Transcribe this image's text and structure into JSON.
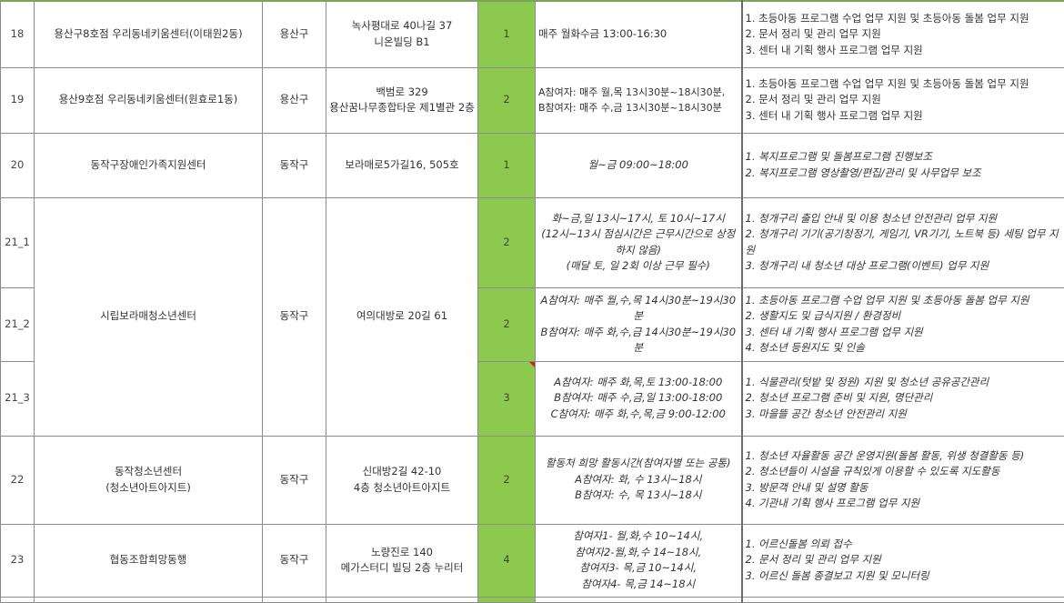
{
  "colors": {
    "count_fill": "#8dc84f",
    "comment_marker": "#d02020"
  },
  "rows": [
    {
      "no": "18",
      "name": "용산구8호점 우리동네키움센터(이태원2동)",
      "district": "용산구",
      "address": "녹사평대로 40나길 37\n니온빌딩 B1",
      "count": "1",
      "schedule": "매주 월화수금 13:00-16:30",
      "duties": "1. 초등아동 프로그램 수업 업무 지원 및 초등아동 돌봄 업무 지원\n2. 문서 정리 및 관리 업무 지원\n3. 센터 내 기획 행사 프로그램 업무 지원"
    },
    {
      "no": "19",
      "name": "용산9호점 우리동네키움센터(원효로1동)",
      "district": "용산구",
      "address": "백범로 329\n용산꿈나무종합타운 제1별관 2층",
      "count": "2",
      "schedule": "A참여자: 매주 월,목 13시30분~18시30분,\nB참여자: 매주 수,금  13시30분~18시30분",
      "duties": "1. 초등아동 프로그램 수업 업무 지원 및 초등아동 돌봄 업무 지원\n2. 문서 정리 및 관리 업무 지원\n3. 센터 내 기획 행사 프로그램 업무 지원"
    },
    {
      "no": "20",
      "name": "동작구장애인가족지원센터",
      "district": "동작구",
      "address": "보라매로5가길16, 505호",
      "count": "1",
      "schedule": "월~금 09:00~18:00",
      "duties": "1. 복지프로그램 및 돌봄프로그램 진행보조\n2. 복지프로그램 영상촬영/편집/관리 및 사무업무 보조"
    },
    {
      "no": "21_1",
      "name": "시립보라매청소년센터",
      "district": "동작구",
      "address": "여의대방로 20길 61",
      "count": "2",
      "schedule": "화~금,일 13시~17시, 토 10시~17시\n(12시~13시 점심시간은 근무시간으로 상정하지 않음)\n(매달 토, 일 2회 이상 근무 필수)",
      "duties": "1. 청개구리 출입 안내 및 이용 청소년 안전관리 업무 지원\n2. 청개구리 기기(공기청정기, 게임기, VR기기, 노트북 등) 세팅 업무 지원\n3. 청개구리 내 청소년 대상 프로그램(이벤트) 업무 지원"
    },
    {
      "no": "21_2",
      "count": "2",
      "schedule": "A참여자: 매주 월,수,목 14시30분~19시30분\nB참여자: 매주 화,수,금  14시30분~19시30분",
      "duties": "1. 초등아동 프로그램 수업 업무 지원 및 초등아동 돌봄 업무 지원\n2. 생활지도 및 급식지원 / 환경정비\n3. 센터 내 기획 행사 프로그램 업무 지원\n4. 청소년 등원지도 및 인솔"
    },
    {
      "no": "21_3",
      "count": "3",
      "schedule": "A참여자: 매주 화,목,토 13:00-18:00\nB참여자: 매주 수,금,일 13:00-18:00\nC참여자: 매주 화,수,목,금 9:00-12:00",
      "duties": "1. 식물관리(텃밭 및 정원) 지원 및 청소년 공유공간관리\n2. 청소년 프로그램 준비 및 지원, 명단관리\n3. 마을뜰 공간 청소년 안전관리 지원"
    },
    {
      "no": "22",
      "name": "동작청소년센터\n(청소년아트아지트)",
      "district": "동작구",
      "address": "신대방2길 42-10\n4층 청소년아트아지트",
      "count": "2",
      "schedule": "활동처 희망 활동시간(참여자별 또는 공통)\nA참여자: 화, 수 13시~18시\nB참여자: 수, 목 13시~18시",
      "duties": "1. 청소년 자율활동 공간 운영지원(돌봄 활동, 위생 청결활동 등)\n2. 청소년들이 시설을 규칙있게 이용할 수 있도록 지도활동\n3. 방문객 안내 및 설명 활동\n4. 기관내 기획 행사 프로그램 업무 지원"
    },
    {
      "no": "23",
      "name": "협동조합희망동행",
      "district": "동작구",
      "address": "노량진로 140\n메가스터디 빌딩 2층 누리터",
      "count": "4",
      "schedule": "참여자1- 월,화,수 10~14시,\n참여자2-월,화,수 14~18시,\n참여자3- 목,금 10~14시,\n참여자4- 목,금 14~18시",
      "duties": "1. 어르신돌봄 의뢰 접수\n2. 문서 정리 및 관리 업무 지원\n3. 어르신 돌봄 종결보고 지원 및 모니터링"
    }
  ]
}
